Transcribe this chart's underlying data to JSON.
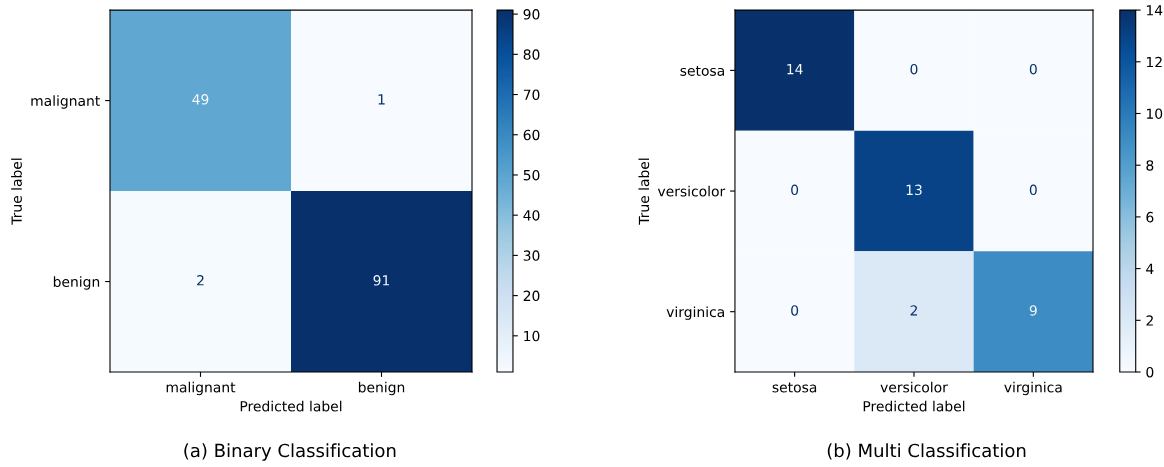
{
  "chart_data": [
    {
      "type": "heatmap",
      "categories": [
        "malignant",
        "benign"
      ],
      "y_categories": [
        "malignant",
        "benign"
      ],
      "cells": [
        [
          49,
          1
        ],
        [
          2,
          91
        ]
      ],
      "clim": [
        1,
        91
      ],
      "cticks": [
        10,
        20,
        30,
        40,
        50,
        60,
        70,
        80,
        90
      ],
      "data_labels": true,
      "xlabel": "Predicted label",
      "ylabel": "True label",
      "annotations": [
        "(a) Binary Classification"
      ]
    },
    {
      "type": "heatmap",
      "categories": [
        "setosa",
        "versicolor",
        "virginica"
      ],
      "y_categories": [
        "setosa",
        "versicolor",
        "virginica"
      ],
      "cells": [
        [
          14,
          0,
          0
        ],
        [
          0,
          13,
          0
        ],
        [
          0,
          2,
          9
        ]
      ],
      "clim": [
        0,
        14
      ],
      "cticks": [
        0,
        2,
        4,
        6,
        8,
        10,
        12,
        14
      ],
      "data_labels": true,
      "xlabel": "Predicted label",
      "ylabel": "True label",
      "annotations": [
        "(b) Multi Classification"
      ]
    }
  ]
}
